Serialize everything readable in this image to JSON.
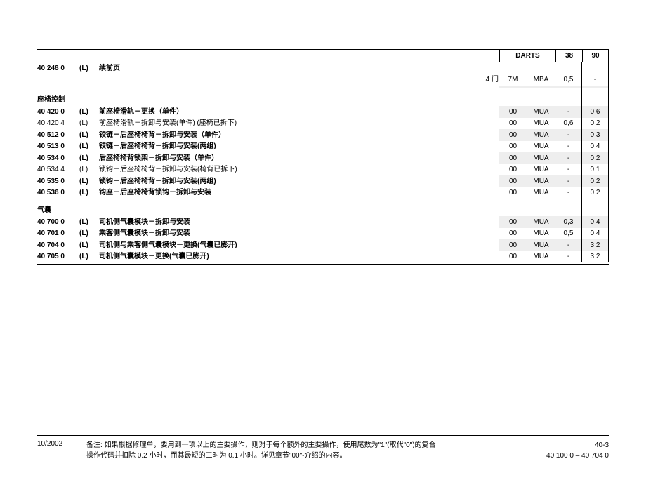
{
  "header": {
    "col1": "DARTS",
    "col2": "38",
    "col3": "90"
  },
  "continuation": {
    "code": "40 248 0",
    "l": "(L)",
    "desc": "续前页"
  },
  "doorRow": {
    "label": "4 门",
    "d1": "7M",
    "d2": "MBA",
    "d3": "0,5",
    "d4": "-"
  },
  "sections": [
    {
      "title": "座椅控制",
      "rows": [
        {
          "code": "40 420 0",
          "l": "(L)",
          "desc": "前座椅滑轨－更换（单件）",
          "d1": "00",
          "d2": "MUA",
          "d3": "-",
          "d4": "0,6",
          "shaded": true,
          "bold": true
        },
        {
          "code": "40 420 4",
          "l": "(L)",
          "desc": "前座椅滑轨－拆卸与安装(单件) (座椅已拆下)",
          "d1": "00",
          "d2": "MUA",
          "d3": "0,6",
          "d4": "0,2",
          "bold": false
        },
        {
          "code": "40 512 0",
          "l": "(L)",
          "desc": "铰链－后座椅椅背－拆卸与安装（单件）",
          "d1": "00",
          "d2": "MUA",
          "d3": "-",
          "d4": "0,3",
          "shaded": true,
          "bold": true
        },
        {
          "code": "40 513 0",
          "l": "(L)",
          "desc": "铰链－后座椅椅背－拆卸与安装(两组)",
          "d1": "00",
          "d2": "MUA",
          "d3": "-",
          "d4": "0,4",
          "bold": true
        },
        {
          "code": "40 534 0",
          "l": "(L)",
          "desc": "后座椅椅背锁架－拆卸与安装（单件）",
          "d1": "00",
          "d2": "MUA",
          "d3": "-",
          "d4": "0,2",
          "shaded": true,
          "bold": true
        },
        {
          "code": "40 534 4",
          "l": "(L)",
          "desc": "锁钩－后座椅椅背－拆卸与安装(椅背已拆下)",
          "d1": "00",
          "d2": "MUA",
          "d3": "-",
          "d4": "0,1",
          "bold": false
        },
        {
          "code": "40 535 0",
          "l": "(L)",
          "desc": "锁钩－后座椅椅背－拆卸与安装(两组)",
          "d1": "00",
          "d2": "MUA",
          "d3": "-",
          "d4": "0,2",
          "shaded": true,
          "bold": true
        },
        {
          "code": "40 536 0",
          "l": "(L)",
          "desc": "钩座－后座椅椅背锁钩－拆卸与安装",
          "d1": "00",
          "d2": "MUA",
          "d3": "-",
          "d4": "0,2",
          "bold": true
        }
      ]
    },
    {
      "title": "气囊",
      "rows": [
        {
          "code": "40 700 0",
          "l": "(L)",
          "desc": "司机侧气囊模块－拆卸与安装",
          "d1": "00",
          "d2": "MUA",
          "d3": "0,3",
          "d4": "0,4",
          "shaded": true,
          "bold": true
        },
        {
          "code": "40 701 0",
          "l": "(L)",
          "desc": "乘客侧气囊模块－拆卸与安装",
          "d1": "00",
          "d2": "MUA",
          "d3": "0,5",
          "d4": "0,4",
          "bold": true
        },
        {
          "code": "40 704 0",
          "l": "(L)",
          "desc": "司机侧与乘客侧气囊模块－更换(气囊已膨开)",
          "d1": "00",
          "d2": "MUA",
          "d3": "-",
          "d4": "3,2",
          "shaded": true,
          "bold": true
        },
        {
          "code": "40 705 0",
          "l": "(L)",
          "desc": "司机侧气囊模块－更换(气囊已膨开)",
          "d1": "00",
          "d2": "MUA",
          "d3": "-",
          "d4": "3,2",
          "bold": true
        }
      ]
    }
  ],
  "footer": {
    "date": "10/2002",
    "noteLabel": "备注:",
    "noteLine1": "如果根据修理单，要用到一项以上的主要操作，则对于每个额外的主要操作，使用尾数为\"1\"(取代\"0\")的复合",
    "noteLine2": "操作代码并扣除 0.2 小时，而其最短的工时为 0.1 小时。详见章节\"00\"-介绍的内容。",
    "page": "40-3",
    "range": "40 100 0 – 40 704 0"
  }
}
